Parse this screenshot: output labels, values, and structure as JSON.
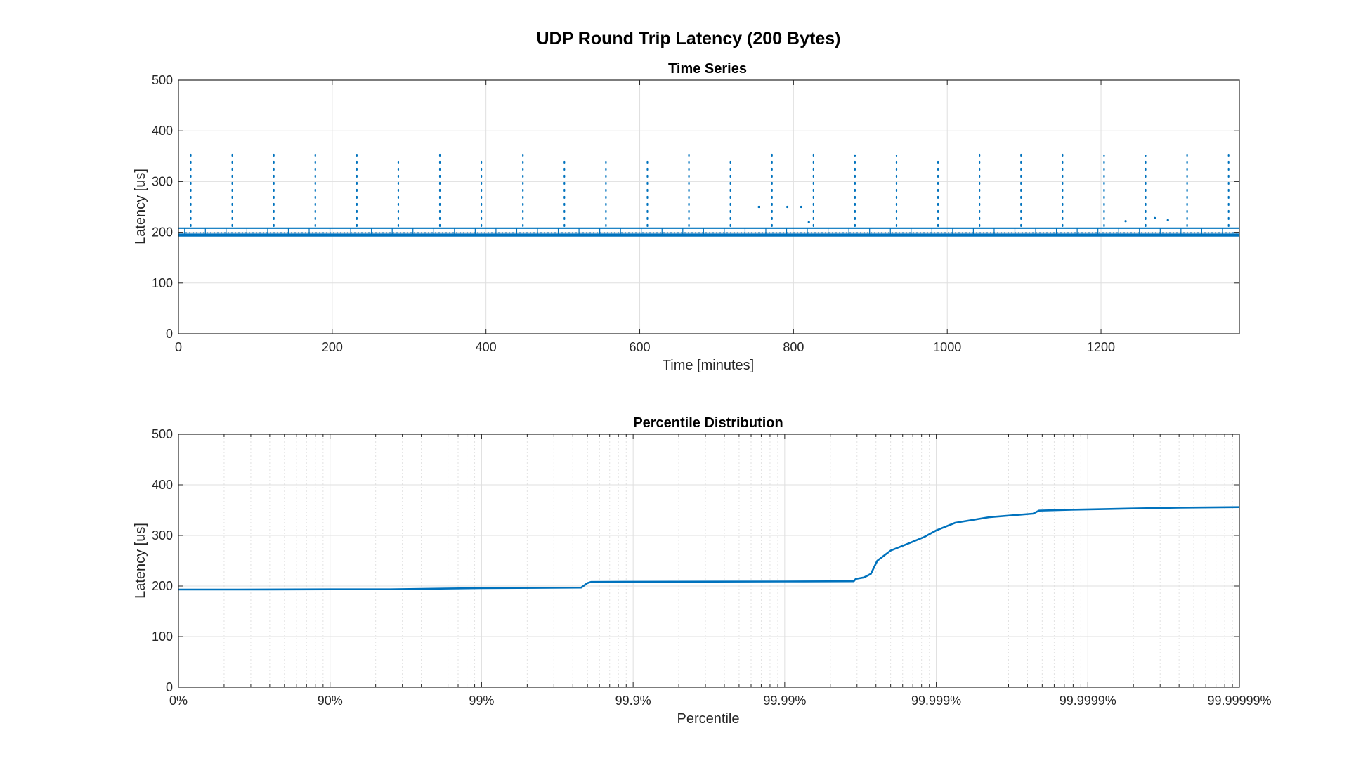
{
  "figure": {
    "title": "UDP Round Trip Latency (200 Bytes)",
    "background": "#ffffff"
  },
  "chart_data": [
    {
      "type": "scatter",
      "title": "Time Series",
      "xlabel": "Time [minutes]",
      "ylabel": "Latency [us]",
      "xlim": [
        0,
        1380
      ],
      "ylim": [
        0,
        500
      ],
      "x_ticks": [
        0,
        200,
        400,
        600,
        800,
        1000,
        1200
      ],
      "x_tick_labels": [
        "0",
        "200",
        "400",
        "600",
        "800",
        "1000",
        "1200"
      ],
      "y_ticks": [
        0,
        100,
        200,
        300,
        400,
        500
      ],
      "y_tick_labels": [
        "0",
        "100",
        "200",
        "300",
        "400",
        "500"
      ],
      "grid": true,
      "color": "#0072BD",
      "baseline_bands": [
        {
          "latency": 193,
          "from": 0,
          "to": 1380
        },
        {
          "latency": 196,
          "from": 0,
          "to": 1380
        },
        {
          "latency": 208,
          "from": 0,
          "to": 1380
        }
      ],
      "periodic_spikes": {
        "times": [
          16,
          70,
          124,
          178,
          232,
          286,
          340,
          394,
          448,
          502,
          556,
          610,
          664,
          718,
          772,
          826,
          880,
          934,
          988,
          1042,
          1096,
          1150,
          1204,
          1258,
          1312,
          1366
        ],
        "max_latency": [
          355,
          357,
          356,
          357,
          353,
          345,
          356,
          343,
          355,
          342,
          350,
          345,
          355,
          346,
          358,
          354,
          352,
          351,
          341,
          355,
          357,
          357,
          352,
          351,
          356,
          353
        ]
      },
      "scattered_points": [
        {
          "time": 755,
          "latency": 250
        },
        {
          "time": 792,
          "latency": 250
        },
        {
          "time": 810,
          "latency": 250
        },
        {
          "time": 820,
          "latency": 220
        },
        {
          "time": 1232,
          "latency": 222
        },
        {
          "time": 1270,
          "latency": 228
        },
        {
          "time": 1287,
          "latency": 224
        }
      ]
    },
    {
      "type": "line",
      "title": "Percentile Distribution",
      "xlabel": "Percentile",
      "ylabel": "Latency [us]",
      "x_scale": "log of 1/(1-p)",
      "x_ticks": [
        "0%",
        "90%",
        "99%",
        "99.9%",
        "99.99%",
        "99.999%",
        "99.9999%",
        "99.99999%"
      ],
      "ylim": [
        0,
        500
      ],
      "y_ticks": [
        0,
        100,
        200,
        300,
        400,
        500
      ],
      "y_tick_labels": [
        "0",
        "100",
        "200",
        "300",
        "400",
        "500"
      ],
      "grid": true,
      "color": "#0072BD",
      "series": [
        {
          "x_percentile": [
            "0%",
            "60%",
            "90%",
            "96%",
            "98.3%",
            "99%",
            "99.78%",
            "99.8%",
            "99.81%",
            "99.9%",
            "99.99%",
            "99.9965%",
            "99.9966%",
            "99.9970%",
            "99.9973%",
            "99.99755%",
            "99.9980%",
            "99.9985%",
            "99.9988%",
            "99.9990%",
            "99.99925%",
            "99.99955%",
            "99.99977%",
            "99.99979%",
            "99.99988%",
            "99.99992%",
            "99.999945%",
            "99.999975%",
            "99.999999%"
          ],
          "latency": [
            193,
            193,
            193.5,
            193.5,
            195,
            196,
            197,
            206,
            208,
            208.5,
            209,
            209.5,
            214,
            217,
            224,
            250,
            270,
            285,
            297,
            310,
            325,
            336,
            343,
            349,
            351,
            352,
            353,
            355,
            356
          ]
        }
      ]
    }
  ]
}
